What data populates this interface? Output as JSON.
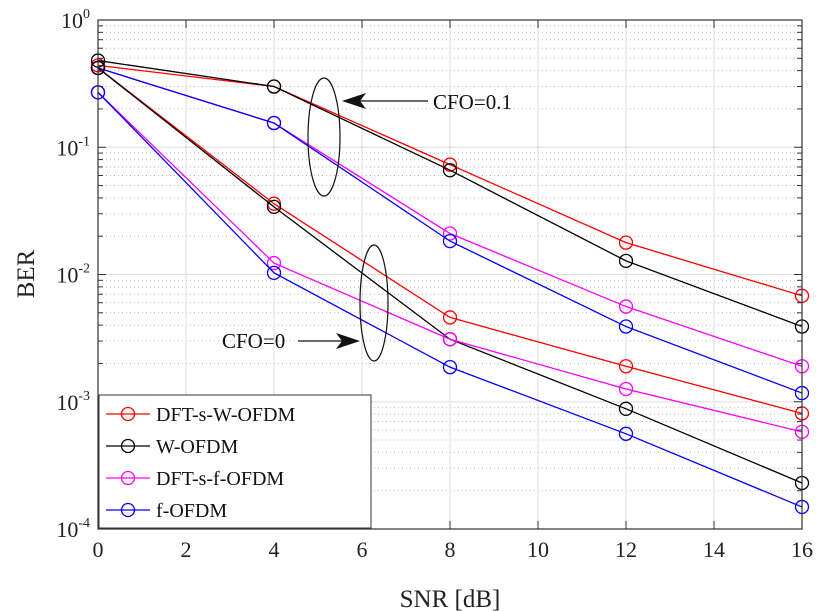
{
  "chart_data": {
    "type": "line",
    "xlabel": "SNR [dB]",
    "ylabel": "BER",
    "xlim": [
      0,
      16
    ],
    "ylim": [
      0.0001,
      1
    ],
    "yscale": "log",
    "grid": true,
    "legend_position": "bottom-left",
    "x_ticks": [
      "0",
      "2",
      "4",
      "6",
      "8",
      "10",
      "12",
      "14",
      "16"
    ],
    "y_ticks": [
      {
        "base": "10",
        "exp": "0"
      },
      {
        "base": "10",
        "exp": "-1"
      },
      {
        "base": "10",
        "exp": "-2"
      },
      {
        "base": "10",
        "exp": "-3"
      },
      {
        "base": "10",
        "exp": "-4"
      }
    ],
    "x": [
      0,
      4,
      8,
      12,
      16
    ],
    "series": [
      {
        "name": "DFT-s-W-OFDM",
        "color": "#ff0000",
        "marker": "circle",
        "group": "CFO=0.1",
        "values": [
          0.44,
          0.3,
          0.073,
          0.0178,
          0.0068
        ]
      },
      {
        "name": "W-OFDM",
        "color": "#000000",
        "marker": "circle",
        "group": "CFO=0.1",
        "values": [
          0.48,
          0.3,
          0.066,
          0.0128,
          0.0039
        ]
      },
      {
        "name": "DFT-s-f-OFDM",
        "color": "#ff00ff",
        "marker": "circle",
        "group": "CFO=0.1",
        "values": [
          0.42,
          0.155,
          0.021,
          0.0056,
          0.0019
        ]
      },
      {
        "name": "f-OFDM",
        "color": "#0000ff",
        "marker": "circle",
        "group": "CFO=0.1",
        "values": [
          0.42,
          0.155,
          0.0183,
          0.0039,
          0.00117
        ]
      },
      {
        "name": "DFT-s-W-OFDM",
        "color": "#ff0000",
        "marker": "circle",
        "group": "CFO=0",
        "values": [
          0.42,
          0.036,
          0.0046,
          0.0019,
          0.00081
        ]
      },
      {
        "name": "W-OFDM",
        "color": "#000000",
        "marker": "circle",
        "group": "CFO=0",
        "values": [
          0.42,
          0.034,
          0.0031,
          0.00088,
          0.00023
        ]
      },
      {
        "name": "DFT-s-f-OFDM",
        "color": "#ff00ff",
        "marker": "circle",
        "group": "CFO=0",
        "values": [
          0.27,
          0.0123,
          0.0031,
          0.00126,
          0.00058
        ]
      },
      {
        "name": "f-OFDM",
        "color": "#0000ff",
        "marker": "circle",
        "group": "CFO=0",
        "values": [
          0.27,
          0.0103,
          0.00187,
          0.00056,
          0.000149
        ]
      }
    ],
    "legend": [
      {
        "name": "DFT-s-W-OFDM",
        "color": "#ff0000"
      },
      {
        "name": "W-OFDM",
        "color": "#000000"
      },
      {
        "name": "DFT-s-f-OFDM",
        "color": "#ff00ff"
      },
      {
        "name": "f-OFDM",
        "color": "#0000ff"
      }
    ],
    "annotations": [
      {
        "text": "CFO=0.1"
      },
      {
        "text": "CFO=0"
      }
    ]
  }
}
